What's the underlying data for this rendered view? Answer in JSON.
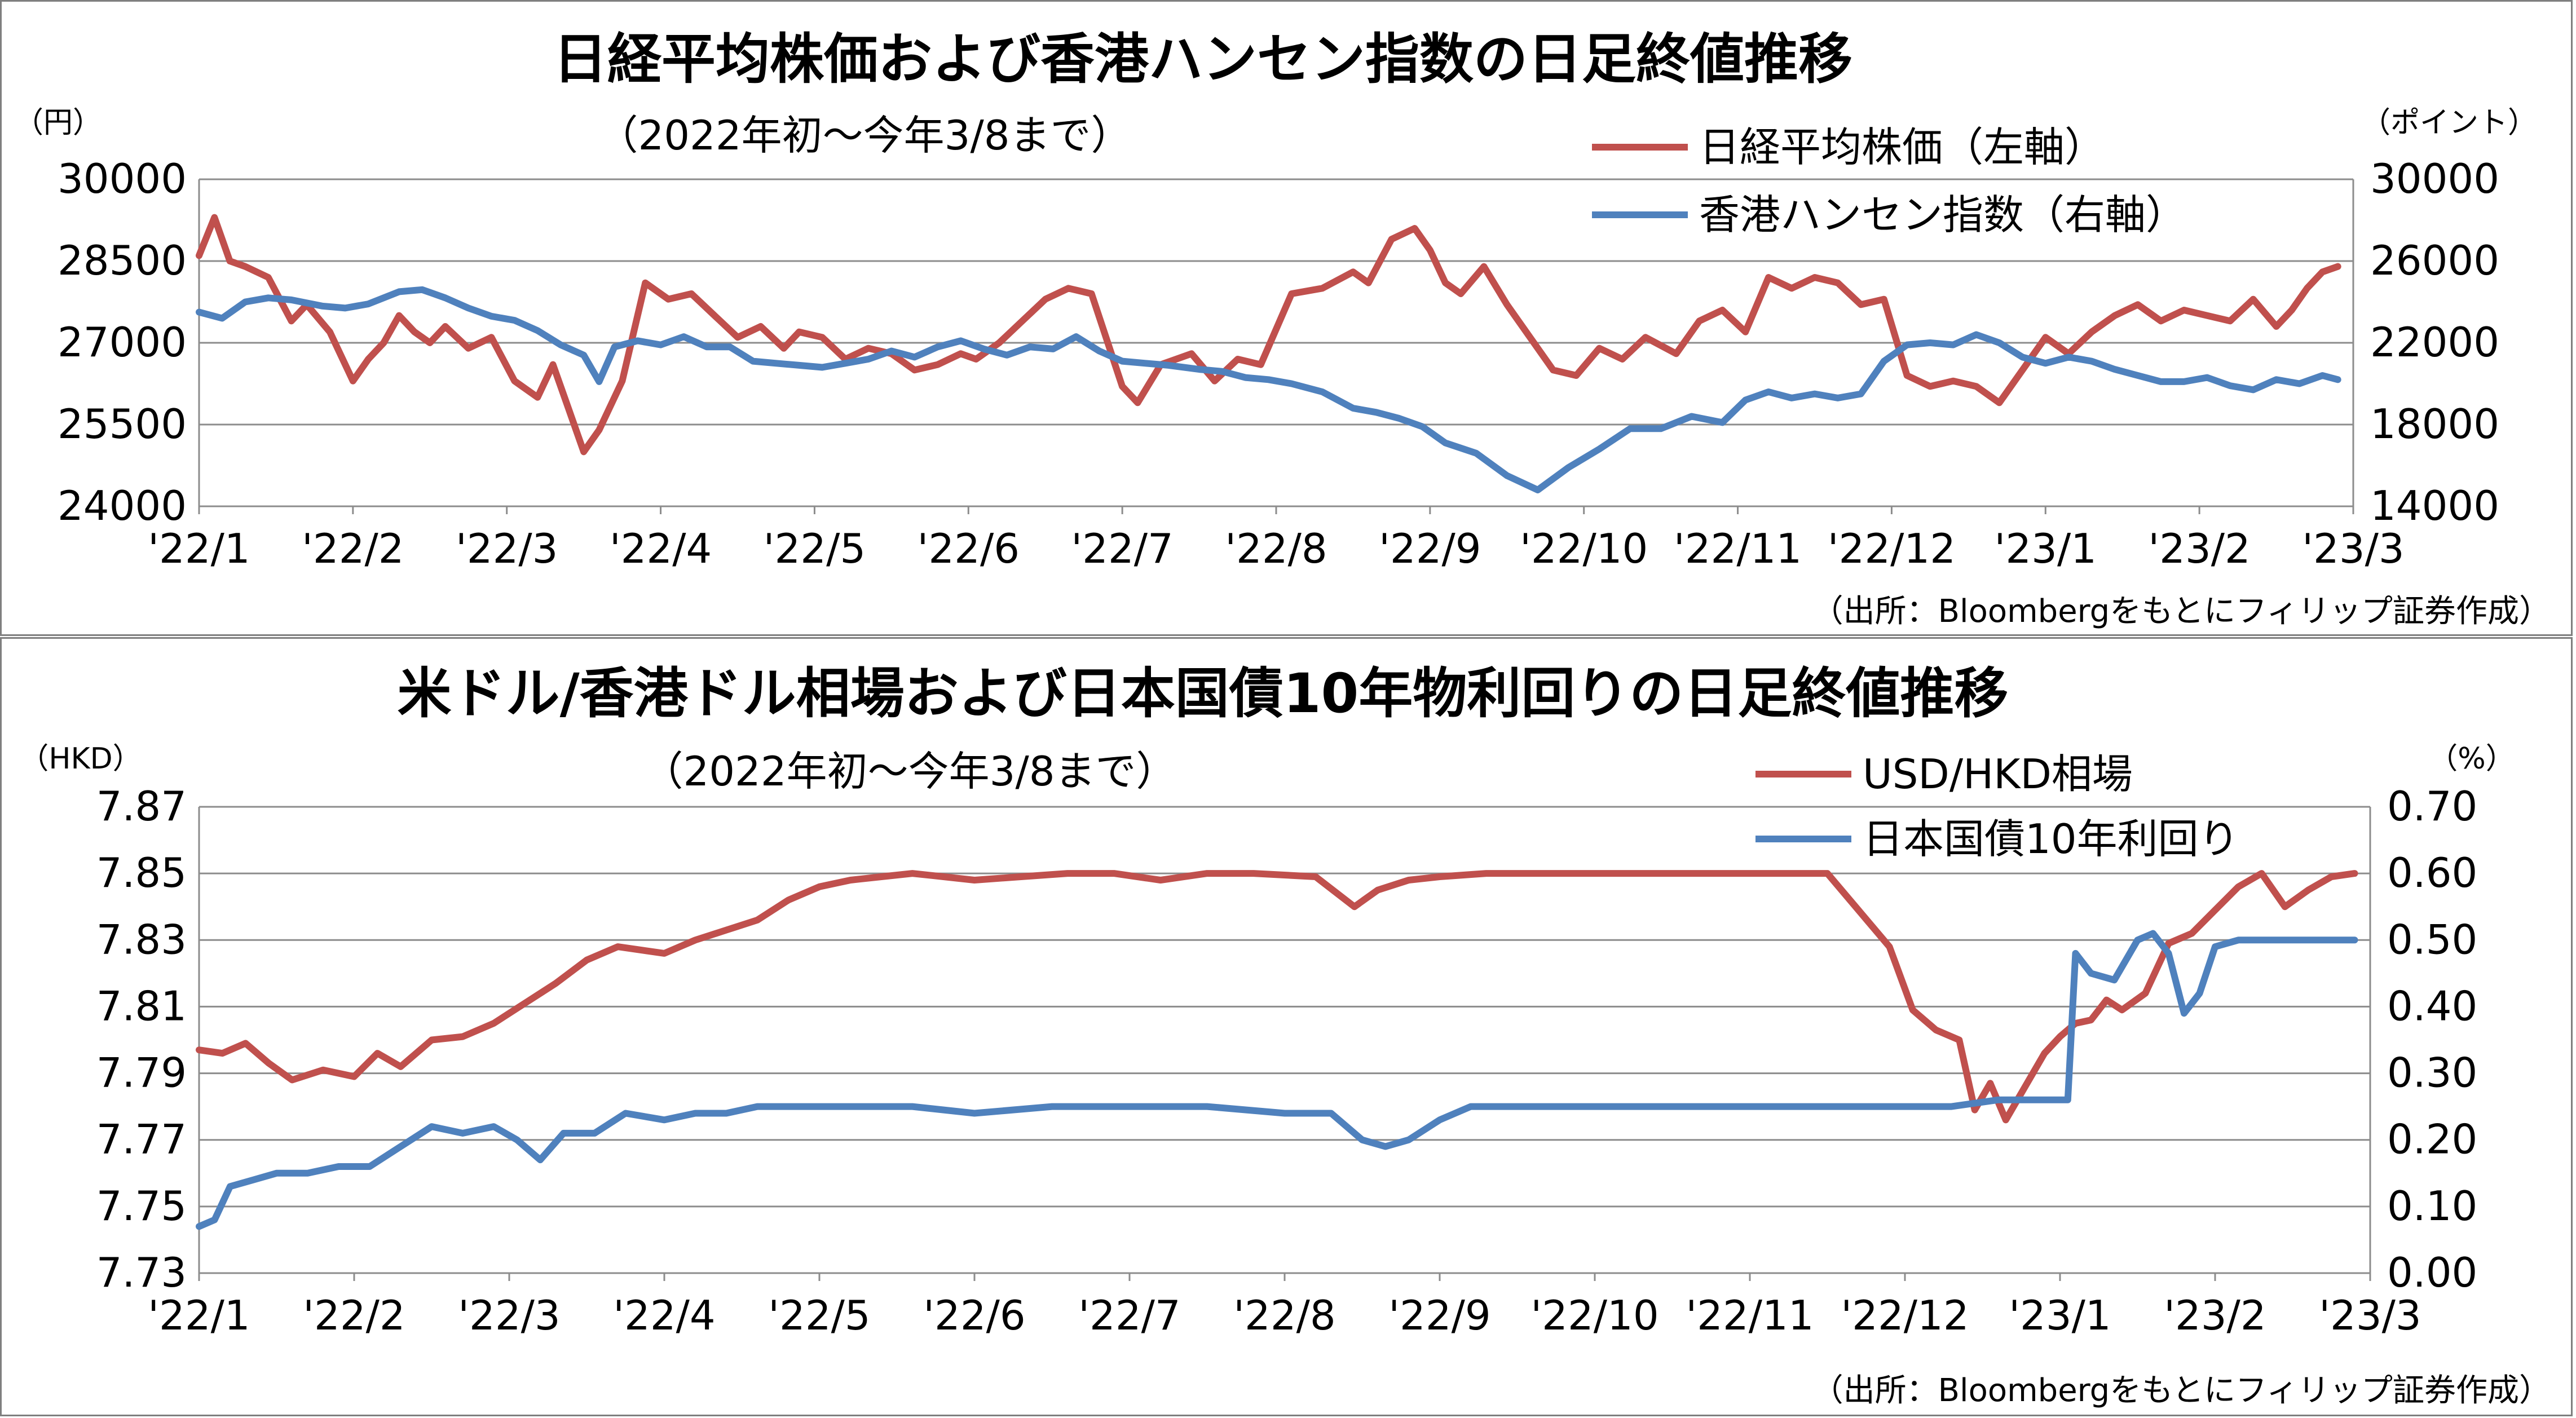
{
  "colors": {
    "red": "#c0504d",
    "blue": "#4f81bd",
    "grid": "#8c8c8c"
  },
  "chart_data": [
    {
      "type": "line",
      "title": "日経平均株価および香港ハンセン指数の日足終値推移",
      "subtitle": "（2022年初～今年3/8まで）",
      "left_unit": "（円）",
      "right_unit": "（ポイント）",
      "source": "（出所：Bloombergをもとにフィリップ証券作成）",
      "categories": [
        "'22/1",
        "'22/2",
        "'22/3",
        "'22/4",
        "'22/5",
        "'22/6",
        "'22/7",
        "'22/8",
        "'22/9",
        "'22/10",
        "'22/11",
        "'22/12",
        "'23/1",
        "'23/2",
        "'23/3"
      ],
      "left_ticks": [
        "30000",
        "28500",
        "27000",
        "25500",
        "24000"
      ],
      "right_ticks": [
        "30000",
        "26000",
        "22000",
        "18000",
        "14000"
      ],
      "ylim_left": [
        24000,
        30000
      ],
      "ylim_right": [
        14000,
        30000
      ],
      "grid": true,
      "legend_position": "top-right",
      "series": [
        {
          "name": "日経平均株価（左軸）",
          "axis": "left",
          "color": "#c0504d",
          "x": [
            0,
            0.1,
            0.2,
            0.3,
            0.45,
            0.6,
            0.7,
            0.85,
            1.0,
            1.1,
            1.2,
            1.3,
            1.4,
            1.5,
            1.6,
            1.75,
            1.9,
            2.05,
            2.2,
            2.3,
            2.4,
            2.5,
            2.6,
            2.75,
            2.9,
            3.05,
            3.2,
            3.35,
            3.5,
            3.65,
            3.8,
            3.9,
            4.05,
            4.2,
            4.35,
            4.5,
            4.65,
            4.8,
            4.95,
            5.05,
            5.2,
            5.35,
            5.5,
            5.65,
            5.8,
            6.0,
            6.1,
            6.25,
            6.45,
            6.6,
            6.75,
            6.9,
            7.1,
            7.3,
            7.5,
            7.6,
            7.75,
            7.9,
            8.0,
            8.1,
            8.2,
            8.35,
            8.5,
            8.65,
            8.8,
            8.95,
            9.1,
            9.25,
            9.4,
            9.6,
            9.75,
            9.9,
            10.05,
            10.2,
            10.35,
            10.5,
            10.65,
            10.8,
            10.95,
            11.1,
            11.25,
            11.4,
            11.55,
            11.7,
            11.85,
            12.0,
            12.15,
            12.3,
            12.45,
            12.6,
            12.75,
            12.9,
            13.05,
            13.2,
            13.35,
            13.5,
            13.6,
            13.7,
            13.8,
            13.9
          ],
          "y": [
            28600,
            29300,
            28500,
            28400,
            28200,
            27400,
            27700,
            27200,
            26300,
            26700,
            27000,
            27500,
            27200,
            27000,
            27300,
            26900,
            27100,
            26300,
            26000,
            26600,
            25800,
            25000,
            25400,
            26300,
            28100,
            27800,
            27900,
            27500,
            27100,
            27300,
            26900,
            27200,
            27100,
            26700,
            26900,
            26800,
            26500,
            26600,
            26800,
            26700,
            27000,
            27400,
            27800,
            28000,
            27900,
            26200,
            25900,
            26600,
            26800,
            26300,
            26700,
            26600,
            27900,
            28000,
            28300,
            28100,
            28900,
            29100,
            28700,
            28100,
            27900,
            28400,
            27700,
            27100,
            26500,
            26400,
            26900,
            26700,
            27100,
            26800,
            27400,
            27600,
            27200,
            28200,
            28000,
            28200,
            28100,
            27700,
            27800,
            26400,
            26200,
            26300,
            26200,
            25900,
            26500,
            27100,
            26800,
            27200,
            27500,
            27700,
            27400,
            27600,
            27500,
            27400,
            27800,
            27300,
            27600,
            28000,
            28300,
            28400
          ]
        },
        {
          "name": "香港ハンセン指数（右軸）",
          "axis": "right",
          "color": "#4f81bd",
          "x": [
            0,
            0.15,
            0.3,
            0.45,
            0.6,
            0.8,
            0.95,
            1.1,
            1.3,
            1.45,
            1.6,
            1.75,
            1.9,
            2.05,
            2.2,
            2.35,
            2.5,
            2.6,
            2.7,
            2.85,
            3.0,
            3.15,
            3.3,
            3.45,
            3.6,
            3.75,
            3.9,
            4.05,
            4.2,
            4.35,
            4.5,
            4.65,
            4.8,
            4.95,
            5.1,
            5.25,
            5.4,
            5.55,
            5.7,
            5.85,
            6.0,
            6.15,
            6.3,
            6.5,
            6.65,
            6.8,
            6.95,
            7.1,
            7.3,
            7.5,
            7.65,
            7.8,
            7.95,
            8.1,
            8.3,
            8.5,
            8.7,
            8.9,
            9.1,
            9.3,
            9.5,
            9.7,
            9.9,
            10.05,
            10.2,
            10.35,
            10.5,
            10.65,
            10.8,
            10.95,
            11.1,
            11.25,
            11.4,
            11.55,
            11.7,
            11.85,
            12.0,
            12.15,
            12.3,
            12.45,
            12.6,
            12.75,
            12.9,
            13.05,
            13.2,
            13.35,
            13.5,
            13.65,
            13.8,
            13.9
          ],
          "y": [
            23500,
            23200,
            24000,
            24200,
            24100,
            23800,
            23700,
            23900,
            24500,
            24600,
            24200,
            23700,
            23300,
            23100,
            22600,
            21900,
            21400,
            20100,
            21800,
            22100,
            21900,
            22300,
            21800,
            21800,
            21100,
            21000,
            20900,
            20800,
            21000,
            21200,
            21600,
            21300,
            21800,
            22100,
            21700,
            21400,
            21800,
            21700,
            22300,
            21600,
            21100,
            21000,
            20900,
            20700,
            20600,
            20300,
            20200,
            20000,
            19600,
            18800,
            18600,
            18300,
            17900,
            17100,
            16600,
            15500,
            14800,
            15900,
            16800,
            17800,
            17800,
            18400,
            18100,
            19200,
            19600,
            19300,
            19500,
            19300,
            19500,
            21100,
            21900,
            22000,
            21900,
            22400,
            22000,
            21300,
            21000,
            21300,
            21100,
            20700,
            20400,
            20100,
            20100,
            20300,
            19900,
            19700,
            20200,
            20000,
            20400,
            20200
          ]
        }
      ]
    },
    {
      "type": "line",
      "title": "米ドル/香港ドル相場および日本国債10年物利回りの日足終値推移",
      "subtitle": "（2022年初～今年3/8まで）",
      "left_unit": "（HKD）",
      "right_unit": "（%）",
      "source": "（出所：Bloombergをもとにフィリップ証券作成）",
      "categories": [
        "'22/1",
        "'22/2",
        "'22/3",
        "'22/4",
        "'22/5",
        "'22/6",
        "'22/7",
        "'22/8",
        "'22/9",
        "'22/10",
        "'22/11",
        "'22/12",
        "'23/1",
        "'23/2",
        "'23/3"
      ],
      "left_ticks": [
        "7.87",
        "7.85",
        "7.83",
        "7.81",
        "7.79",
        "7.77",
        "7.75",
        "7.73"
      ],
      "right_ticks": [
        "0.70",
        "0.60",
        "0.50",
        "0.40",
        "0.30",
        "0.20",
        "0.10",
        "0.00"
      ],
      "ylim_left": [
        7.73,
        7.87
      ],
      "ylim_right": [
        0.0,
        0.7
      ],
      "grid": true,
      "legend_position": "top-right",
      "series": [
        {
          "name": "USD/HKD相場",
          "axis": "left",
          "color": "#c0504d",
          "x": [
            0,
            0.15,
            0.3,
            0.45,
            0.6,
            0.8,
            1.0,
            1.15,
            1.3,
            1.5,
            1.7,
            1.9,
            2.1,
            2.3,
            2.5,
            2.7,
            3.0,
            3.2,
            3.4,
            3.6,
            3.8,
            4.0,
            4.2,
            4.4,
            4.6,
            4.8,
            5.0,
            5.3,
            5.6,
            5.9,
            6.2,
            6.5,
            6.8,
            7.2,
            7.45,
            7.6,
            7.8,
            8.0,
            8.3,
            8.6,
            9.0,
            9.5,
            10.0,
            10.5,
            10.9,
            11.05,
            11.2,
            11.35,
            11.45,
            11.55,
            11.65,
            11.75,
            11.9,
            12.0,
            12.1,
            12.2,
            12.3,
            12.4,
            12.55,
            12.7,
            12.85,
            13.0,
            13.15,
            13.3,
            13.45,
            13.6,
            13.75,
            13.9
          ],
          "y": [
            7.797,
            7.796,
            7.799,
            7.793,
            7.788,
            7.791,
            7.789,
            7.796,
            7.792,
            7.8,
            7.801,
            7.805,
            7.811,
            7.817,
            7.824,
            7.828,
            7.826,
            7.83,
            7.833,
            7.836,
            7.842,
            7.846,
            7.848,
            7.849,
            7.85,
            7.849,
            7.848,
            7.849,
            7.85,
            7.85,
            7.848,
            7.85,
            7.85,
            7.849,
            7.84,
            7.845,
            7.848,
            7.849,
            7.85,
            7.85,
            7.85,
            7.85,
            7.85,
            7.85,
            7.828,
            7.809,
            7.803,
            7.8,
            7.779,
            7.787,
            7.776,
            7.784,
            7.796,
            7.801,
            7.805,
            7.806,
            7.812,
            7.809,
            7.814,
            7.829,
            7.832,
            7.839,
            7.846,
            7.85,
            7.84,
            7.845,
            7.849,
            7.85
          ]
        },
        {
          "name": "日本国債10年利回り",
          "axis": "right",
          "color": "#4f81bd",
          "x": [
            0,
            0.1,
            0.2,
            0.35,
            0.5,
            0.7,
            0.9,
            1.1,
            1.3,
            1.5,
            1.7,
            1.9,
            2.05,
            2.2,
            2.35,
            2.55,
            2.75,
            3.0,
            3.2,
            3.4,
            3.6,
            3.8,
            4.0,
            4.3,
            4.6,
            5.0,
            5.5,
            6.0,
            6.5,
            7.0,
            7.3,
            7.5,
            7.65,
            7.8,
            8.0,
            8.2,
            8.5,
            9.0,
            9.5,
            10.0,
            10.5,
            11.0,
            11.3,
            11.6,
            11.9,
            12.05,
            12.1,
            12.2,
            12.35,
            12.5,
            12.6,
            12.7,
            12.8,
            12.9,
            13.0,
            13.15,
            13.3,
            13.5,
            13.7,
            13.9
          ],
          "y": [
            0.07,
            0.08,
            0.13,
            0.14,
            0.15,
            0.15,
            0.16,
            0.16,
            0.19,
            0.22,
            0.21,
            0.22,
            0.2,
            0.17,
            0.21,
            0.21,
            0.24,
            0.23,
            0.24,
            0.24,
            0.25,
            0.25,
            0.25,
            0.25,
            0.25,
            0.24,
            0.25,
            0.25,
            0.25,
            0.24,
            0.24,
            0.2,
            0.19,
            0.2,
            0.23,
            0.25,
            0.25,
            0.25,
            0.25,
            0.25,
            0.25,
            0.25,
            0.25,
            0.26,
            0.26,
            0.26,
            0.48,
            0.45,
            0.44,
            0.5,
            0.51,
            0.48,
            0.39,
            0.42,
            0.49,
            0.5,
            0.5,
            0.5,
            0.5,
            0.5
          ]
        }
      ]
    }
  ]
}
